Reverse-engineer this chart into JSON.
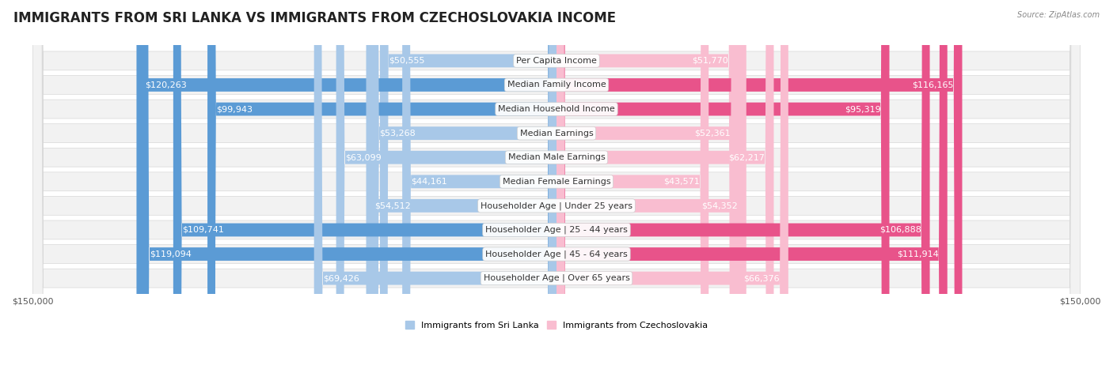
{
  "title": "IMMIGRANTS FROM SRI LANKA VS IMMIGRANTS FROM CZECHOSLOVAKIA INCOME",
  "source": "Source: ZipAtlas.com",
  "categories": [
    "Per Capita Income",
    "Median Family Income",
    "Median Household Income",
    "Median Earnings",
    "Median Male Earnings",
    "Median Female Earnings",
    "Householder Age | Under 25 years",
    "Householder Age | 25 - 44 years",
    "Householder Age | 45 - 64 years",
    "Householder Age | Over 65 years"
  ],
  "sri_lanka_values": [
    50555,
    120263,
    99943,
    53268,
    63099,
    44161,
    54512,
    109741,
    119094,
    69426
  ],
  "czechoslovakia_values": [
    51770,
    116165,
    95319,
    52361,
    62217,
    43571,
    54352,
    106888,
    111914,
    66376
  ],
  "sri_lanka_labels": [
    "$50,555",
    "$120,263",
    "$99,943",
    "$53,268",
    "$63,099",
    "$44,161",
    "$54,512",
    "$109,741",
    "$119,094",
    "$69,426"
  ],
  "czechoslovakia_labels": [
    "$51,770",
    "$116,165",
    "$95,319",
    "$52,361",
    "$62,217",
    "$43,571",
    "$54,352",
    "$106,888",
    "$111,914",
    "$66,376"
  ],
  "sri_lanka_color_light": "#a8c8e8",
  "sri_lanka_color_dark": "#5b9bd5",
  "czechoslovakia_color_light": "#f9bdd0",
  "czechoslovakia_color_dark": "#e8538a",
  "dark_threshold": 90000,
  "max_value": 150000,
  "background_color": "#ffffff",
  "row_bg_color": "#f2f2f2",
  "row_border_color": "#d8d8d8",
  "label_color_outside": "#444444",
  "label_color_inside": "#ffffff",
  "inside_threshold": 30000,
  "legend_sri_lanka": "Immigrants from Sri Lanka",
  "legend_czechoslovakia": "Immigrants from Czechoslovakia",
  "title_fontsize": 12,
  "label_fontsize": 8,
  "category_fontsize": 8,
  "axis_fontsize": 8
}
